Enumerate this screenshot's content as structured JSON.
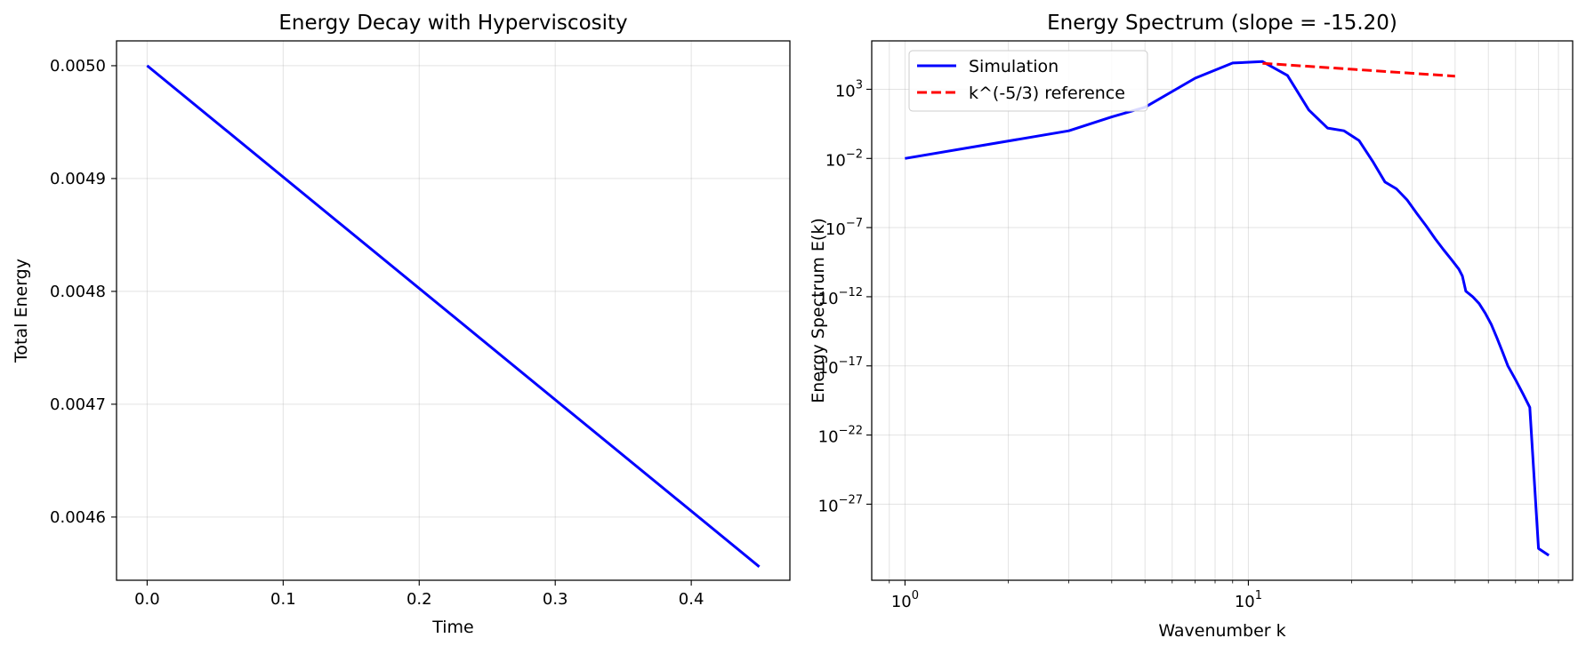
{
  "chart_data": [
    {
      "type": "line",
      "title": "Energy Decay with Hyperviscosity",
      "xlabel": "Time",
      "ylabel": "Total Energy",
      "xlim": [
        -0.0225,
        0.4725
      ],
      "ylim": [
        0.004544,
        0.005022
      ],
      "xticks": [
        0.0,
        0.1,
        0.2,
        0.3,
        0.4
      ],
      "xtick_labels": [
        "0.0",
        "0.1",
        "0.2",
        "0.3",
        "0.4"
      ],
      "yticks": [
        0.0046,
        0.0047,
        0.0048,
        0.0049,
        0.005
      ],
      "ytick_labels": [
        "0.0046",
        "0.0047",
        "0.0048",
        "0.0049",
        "0.0050"
      ],
      "grid": true,
      "series": [
        {
          "color": "#0000ff",
          "x": [
            0.0,
            0.45
          ],
          "y": [
            0.005,
            0.004556
          ]
        }
      ]
    },
    {
      "type": "line",
      "title": "Energy Spectrum (slope = -15.20)",
      "xlabel": "Wavenumber k",
      "ylabel": "Energy Spectrum E(k)",
      "xscale": "log",
      "yscale": "log",
      "xlim": [
        0.8,
        88
      ],
      "ylim_exp": [
        -32.5,
        6.5
      ],
      "xticks": [
        1,
        10
      ],
      "xtick_labels": [
        {
          "base": "10",
          "exp": "0"
        },
        {
          "base": "10",
          "exp": "1"
        }
      ],
      "yticks_exp": [
        3,
        -2,
        -7,
        -12,
        -17,
        -22,
        -27
      ],
      "ytick_labels": [
        {
          "base": "10",
          "exp": "3"
        },
        {
          "base": "10",
          "exp": "−2"
        },
        {
          "base": "10",
          "exp": "−7"
        },
        {
          "base": "10",
          "exp": "−12"
        },
        {
          "base": "10",
          "exp": "−17"
        },
        {
          "base": "10",
          "exp": "−22"
        },
        {
          "base": "10",
          "exp": "−27"
        }
      ],
      "grid": true,
      "legend": "top-left",
      "series": [
        {
          "name": "Simulation",
          "color": "#0000ff",
          "style": "solid",
          "x": [
            1,
            3,
            4,
            5,
            7,
            9,
            11,
            13,
            15,
            17,
            19,
            21,
            23,
            25,
            27,
            29,
            31,
            33,
            35,
            37,
            39,
            41,
            42,
            43,
            45,
            47,
            49,
            51,
            53,
            55,
            57,
            60,
            63,
            66,
            70,
            75
          ],
          "log10_y": [
            -2.0,
            0.0,
            1.0,
            1.7,
            3.8,
            4.9,
            5.0,
            4.0,
            1.5,
            0.2,
            0.0,
            -0.7,
            -2.2,
            -3.7,
            -4.2,
            -5.0,
            -6.0,
            -6.9,
            -7.8,
            -8.6,
            -9.3,
            -10.0,
            -10.5,
            -11.6,
            -12.0,
            -12.5,
            -13.2,
            -14.0,
            -15.0,
            -16.0,
            -17.0,
            -18.0,
            -19.0,
            -20.0,
            -30.2,
            -30.7
          ]
        },
        {
          "name": "k^(-5/3) reference",
          "color": "#ff0000",
          "style": "dashed",
          "x": [
            11,
            40
          ],
          "log10_y": [
            4.88,
            3.95
          ]
        }
      ]
    }
  ]
}
